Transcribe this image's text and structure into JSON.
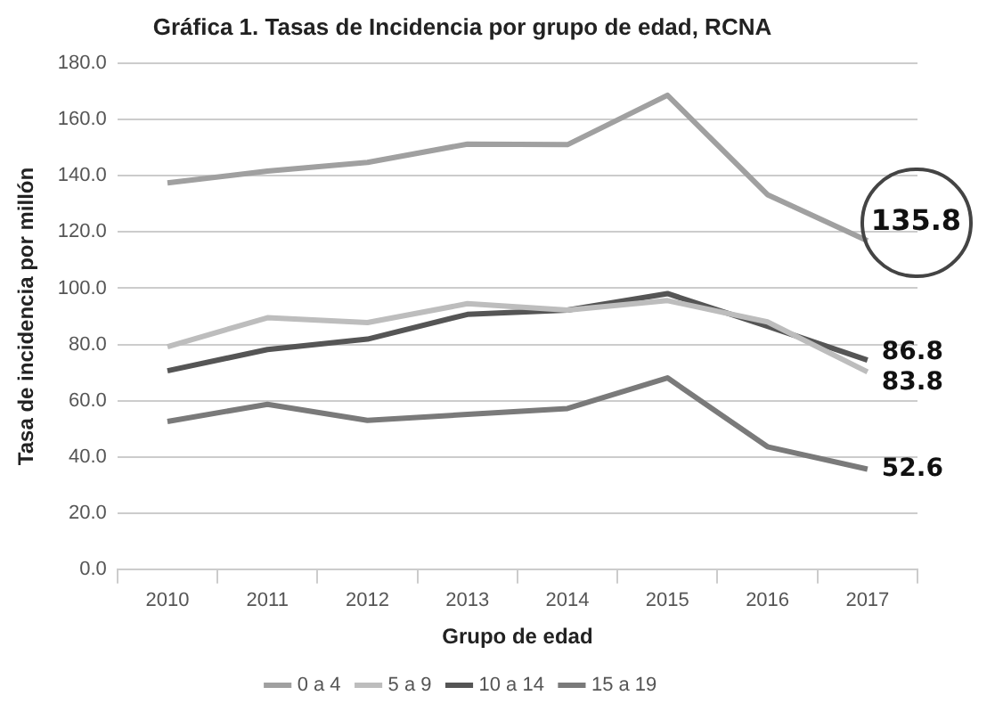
{
  "chart_data": {
    "type": "line",
    "title": "Gráfica 1. Tasas de Incidencia por grupo de edad, RCNA",
    "xlabel": "Grupo de edad",
    "ylabel": "Tasa de incidencia por millón",
    "categories": [
      "2010",
      "2011",
      "2012",
      "2013",
      "2014",
      "2015",
      "2016",
      "2017"
    ],
    "series": [
      {
        "name": "0 a 4",
        "color": "#a0a0a0",
        "values": [
          137.5,
          141.7,
          144.8,
          151.3,
          151.1,
          168.7,
          133.3,
          116.9
        ]
      },
      {
        "name": "5 a 9",
        "color": "#bdbdbd",
        "values": [
          79.2,
          89.5,
          87.8,
          94.5,
          92.2,
          95.6,
          88,
          70.2
        ]
      },
      {
        "name": "10 a 14",
        "color": "#555555",
        "values": [
          70.6,
          78.2,
          81.9,
          90.7,
          92.2,
          98.1,
          86.5,
          74.4
        ]
      },
      {
        "name": "15 a 19",
        "color": "#7a7a7a",
        "values": [
          52.6,
          58.7,
          53,
          55.1,
          57.2,
          68.1,
          43.6,
          35.6
        ]
      }
    ],
    "ylim": [
      0,
      180
    ],
    "yticks": [
      {
        "value": 0,
        "label": "0.0"
      },
      {
        "value": 20,
        "label": "20.0"
      },
      {
        "value": 40,
        "label": "40.0"
      },
      {
        "value": 60,
        "label": "60.0"
      },
      {
        "value": 80,
        "label": "80.0"
      },
      {
        "value": 100,
        "label": "100.0"
      },
      {
        "value": 120,
        "label": "120.0"
      },
      {
        "value": 140,
        "label": "140.0"
      },
      {
        "value": 160,
        "label": "160.0"
      },
      {
        "value": 180,
        "label": "180.0"
      }
    ],
    "grid": "y",
    "legend": "bottom",
    "marker": "none",
    "line_style": "solid",
    "annotations": [
      "135.8",
      "86.8",
      "83.8",
      "52.6"
    ]
  }
}
